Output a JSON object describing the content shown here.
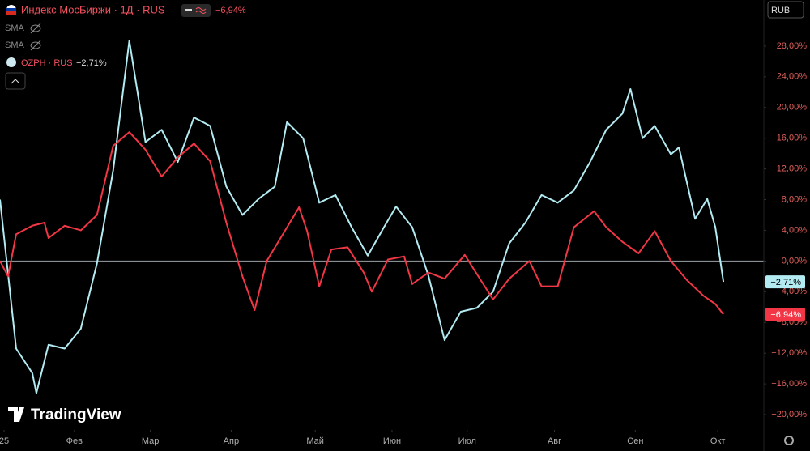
{
  "chart_data": {
    "type": "line",
    "legend": {
      "main": "Индекс МосБиржи · 1Д · RUS",
      "main_change": "−6,94%",
      "indicators": [
        "SMA",
        "SMA"
      ],
      "compare": "OZPH · RUS",
      "compare_change": "−2,71%"
    },
    "currency": "RUB",
    "watermark": "TradingView",
    "xlim": [
      0,
      189
    ],
    "xticks": [
      {
        "value": 1,
        "label": "25"
      },
      {
        "value": 18.4,
        "label": "Фев"
      },
      {
        "value": 37.2,
        "label": "Мар"
      },
      {
        "value": 57.2,
        "label": "Апр"
      },
      {
        "value": 78,
        "label": "Май"
      },
      {
        "value": 97,
        "label": "Июн"
      },
      {
        "value": 115.6,
        "label": "Июл"
      },
      {
        "value": 137.2,
        "label": "Авг"
      },
      {
        "value": 157.2,
        "label": "Сен"
      },
      {
        "value": 177.6,
        "label": "Окт"
      }
    ],
    "ylim": [
      -22,
      34
    ],
    "yticks": [
      {
        "value": 28,
        "label": "28,00%"
      },
      {
        "value": 24,
        "label": "24,00%"
      },
      {
        "value": 20,
        "label": "20,00%"
      },
      {
        "value": 16,
        "label": "16,00%"
      },
      {
        "value": 12,
        "label": "12,00%"
      },
      {
        "value": 8,
        "label": "8,00%"
      },
      {
        "value": 4,
        "label": "4,00%"
      },
      {
        "value": 0,
        "label": "0,00%"
      },
      {
        "value": -4,
        "label": "−4,00%"
      },
      {
        "value": -8,
        "label": "−8,00%"
      },
      {
        "value": -12,
        "label": "−12,00%"
      },
      {
        "value": -16,
        "label": "−16,00%"
      },
      {
        "value": -20,
        "label": "−20,00%"
      }
    ],
    "series": [
      {
        "color": "#b2ebf2",
        "x": [
          0,
          4,
          8,
          9,
          12,
          16,
          20,
          24,
          28,
          32,
          36,
          40,
          44,
          48,
          52,
          56,
          60,
          64,
          68,
          71,
          75,
          79,
          83,
          87,
          91,
          95,
          98,
          102,
          106,
          110,
          114,
          118,
          122,
          126,
          130,
          134,
          138,
          142,
          146,
          150,
          154,
          156,
          159,
          162,
          166,
          168,
          172,
          175,
          177,
          179
        ],
        "values": [
          8,
          -11.4,
          -14.6,
          -17.2,
          -10.9,
          -11.4,
          -8.8,
          -0.3,
          11.8,
          28.7,
          15.5,
          17.1,
          12.9,
          18.7,
          17.6,
          9.7,
          6,
          8.1,
          9.7,
          18.1,
          16,
          7.6,
          8.6,
          4.4,
          0.7,
          4.4,
          7.1,
          4.4,
          -1.9,
          -10.3,
          -6.6,
          -6.1,
          -4,
          2.3,
          5,
          8.6,
          7.6,
          9.2,
          12.9,
          17.1,
          19.2,
          22.4,
          16,
          17.6,
          13.9,
          14.8,
          5.5,
          8.1,
          4.4,
          -2.71
        ],
        "value_labels": [
          null,
          null,
          null,
          null,
          null,
          null,
          null,
          null,
          null,
          null,
          null,
          null,
          null,
          null,
          null,
          null,
          null,
          null,
          null,
          null,
          null,
          null,
          null,
          null,
          null,
          null,
          null,
          null,
          null,
          null,
          null,
          null,
          null,
          null,
          null,
          null,
          null,
          null,
          null,
          null,
          null,
          null,
          null,
          null,
          null,
          null,
          null,
          null,
          null,
          "−2,71%"
        ]
      },
      {
        "color": "#f23645",
        "x": [
          0,
          2,
          4,
          8,
          11,
          12,
          16,
          20,
          24,
          28,
          32,
          36,
          40,
          44,
          48,
          52,
          56,
          60,
          63,
          66,
          70,
          74,
          76,
          79,
          82,
          86,
          90,
          92,
          96,
          100,
          102,
          106,
          110,
          115,
          118,
          122,
          126,
          131,
          134,
          138,
          142,
          147,
          150,
          154,
          158,
          162,
          166,
          170,
          174,
          177,
          179
        ],
        "values": [
          0,
          -2,
          3.5,
          4.6,
          5,
          3,
          4.6,
          4,
          6,
          15,
          16.8,
          14.5,
          11,
          13.5,
          15.3,
          13,
          5,
          -2,
          -6.4,
          0,
          3.5,
          7,
          3.9,
          -3.3,
          1.5,
          1.8,
          -1.5,
          -4,
          0.2,
          0.6,
          -3,
          -1.5,
          -2.3,
          0.8,
          -1.7,
          -5,
          -2.3,
          0,
          -3.3,
          -3.3,
          4.4,
          6.5,
          4.4,
          2.5,
          1,
          3.9,
          0,
          -2.5,
          -4.5,
          -5.6,
          -6.94
        ],
        "value_labels": [
          null,
          null,
          null,
          null,
          null,
          null,
          null,
          null,
          null,
          null,
          null,
          null,
          null,
          null,
          null,
          null,
          null,
          null,
          null,
          null,
          null,
          null,
          null,
          null,
          null,
          null,
          null,
          null,
          null,
          null,
          null,
          null,
          null,
          null,
          null,
          null,
          null,
          null,
          null,
          null,
          null,
          null,
          null,
          null,
          null,
          null,
          null,
          null,
          null,
          null,
          "−6,94%"
        ]
      }
    ]
  }
}
